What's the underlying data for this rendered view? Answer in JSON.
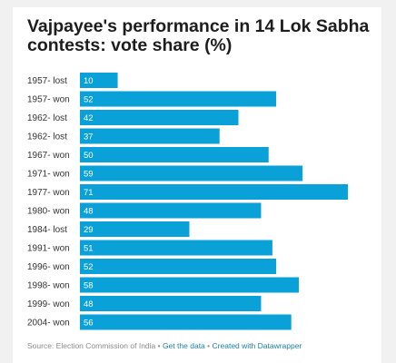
{
  "chart_data": {
    "type": "bar",
    "orientation": "horizontal",
    "title": "Vajpayee's performance in 14 Lok Sabha contests: vote share (%)",
    "categories": [
      "1957- lost",
      "1957- won",
      "1962- lost",
      "1962- lost",
      "1967- won",
      "1971- won",
      "1977- won",
      "1980- won",
      "1984- lost",
      "1991- won",
      "1996- won",
      "1998- won",
      "1999- won",
      "2004- won"
    ],
    "values": [
      10,
      52,
      42,
      37,
      50,
      59,
      71,
      48,
      29,
      51,
      52,
      58,
      48,
      56
    ],
    "xlim": [
      0,
      71
    ],
    "bar_color": "#0aa0d8",
    "value_label_color": "#ffffff",
    "grid": false
  },
  "footer": {
    "source": "Source: Election Commission of India",
    "separator": "•",
    "get_data": "Get the data",
    "created_with": "Created with Datawrapper",
    "link_color": "#1d81a2"
  }
}
